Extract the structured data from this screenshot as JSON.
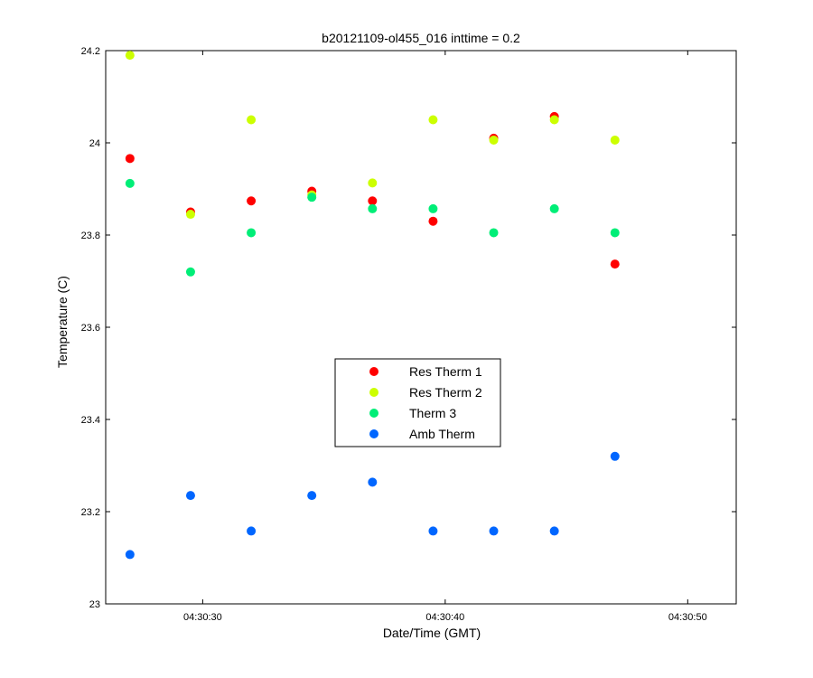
{
  "chart_data": {
    "type": "scatter",
    "title": "b20121109-ol455_016 inttime = 0.2",
    "xlabel": "Date/Time (GMT)",
    "ylabel": "Temperature (C)",
    "xlim": [
      "04:30:26.0",
      "04:30:52.0"
    ],
    "ylim": [
      23,
      24.2
    ],
    "x_ticks": [
      "04:30:30",
      "04:30:40",
      "04:30:50"
    ],
    "y_ticks": [
      "23",
      "23.2",
      "23.4",
      "23.6",
      "23.8",
      "24",
      "24.2"
    ],
    "grid": false,
    "legend_position": "center",
    "x": [
      "04:30:27.0",
      "04:30:29.5",
      "04:30:32.0",
      "04:30:34.5",
      "04:30:37.0",
      "04:30:39.5",
      "04:30:42.0",
      "04:30:44.5",
      "04:30:47.0"
    ],
    "series": [
      {
        "name": "Res Therm 1",
        "color": "#ff0000",
        "values": [
          23.966,
          23.85,
          23.874,
          23.895,
          23.874,
          23.83,
          24.01,
          24.057,
          23.737
        ]
      },
      {
        "name": "Res Therm 2",
        "color": "#ccff00",
        "values": [
          24.19,
          23.845,
          24.05,
          23.887,
          23.913,
          24.05,
          24.006,
          24.05,
          24.006
        ]
      },
      {
        "name": "Therm 3",
        "color": "#00ee77",
        "values": [
          23.912,
          23.72,
          23.805,
          23.882,
          23.857,
          23.857,
          23.805,
          23.857,
          23.805
        ]
      },
      {
        "name": "Amb Therm",
        "color": "#0066ff",
        "values": [
          23.107,
          23.235,
          23.158,
          23.235,
          23.264,
          23.158,
          23.158,
          23.158,
          23.32
        ]
      }
    ]
  }
}
